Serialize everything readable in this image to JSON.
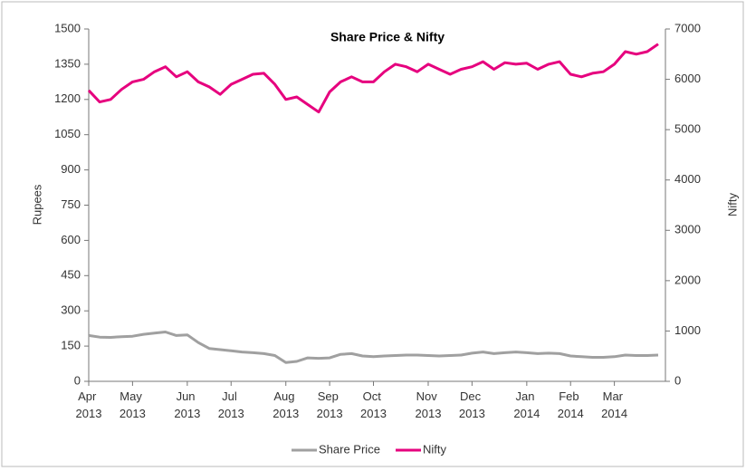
{
  "chart_data": {
    "type": "line",
    "title": "Share Price & Nifty",
    "ylabel": "Rupees",
    "y2label": "Nifty",
    "categories": [
      "Apr 2013",
      null,
      null,
      null,
      "May 2013",
      null,
      null,
      null,
      null,
      "Jun 2013",
      null,
      null,
      null,
      "Jul 2013",
      null,
      null,
      null,
      null,
      "Aug 2013",
      null,
      null,
      null,
      "Sep 2013",
      null,
      null,
      null,
      "Oct 2013",
      null,
      null,
      null,
      null,
      "Nov 2013",
      null,
      null,
      null,
      "Dec 2013",
      null,
      null,
      null,
      null,
      "Jan 2014",
      null,
      null,
      null,
      "Feb 2014",
      null,
      null,
      null,
      "Mar 2014",
      null,
      null,
      null,
      null
    ],
    "series": [
      {
        "name": "Share Price",
        "color": "#a0a0a0",
        "axis": "y",
        "values": [
          195,
          188,
          187,
          190,
          192,
          200,
          205,
          210,
          195,
          198,
          165,
          140,
          135,
          130,
          125,
          122,
          118,
          110,
          80,
          85,
          100,
          98,
          100,
          115,
          118,
          108,
          105,
          108,
          110,
          112,
          112,
          110,
          108,
          110,
          112,
          120,
          125,
          118,
          122,
          125,
          122,
          118,
          120,
          118,
          108,
          105,
          102,
          102,
          105,
          112,
          110,
          110,
          112
        ]
      },
      {
        "name": "Nifty",
        "color": "#e6007e",
        "axis": "y2",
        "values": [
          5780,
          5550,
          5600,
          5800,
          5950,
          6000,
          6150,
          6250,
          6050,
          6150,
          5950,
          5850,
          5700,
          5900,
          6000,
          6100,
          6120,
          5900,
          5600,
          5650,
          5500,
          5350,
          5750,
          5950,
          6050,
          5950,
          5950,
          6150,
          6300,
          6250,
          6150,
          6300,
          6200,
          6100,
          6200,
          6250,
          6350,
          6200,
          6330,
          6300,
          6320,
          6200,
          6300,
          6350,
          6100,
          6050,
          6120,
          6150,
          6300,
          6550,
          6500,
          6550,
          6700
        ]
      }
    ],
    "ylim": [
      0,
      1500
    ],
    "yticks": [
      0,
      150,
      300,
      450,
      600,
      750,
      900,
      1050,
      1200,
      1350,
      1500
    ],
    "y2lim": [
      0,
      7000
    ],
    "y2ticks": [
      0,
      1000,
      2000,
      3000,
      4000,
      5000,
      6000,
      7000
    ],
    "legend": "bottom"
  }
}
